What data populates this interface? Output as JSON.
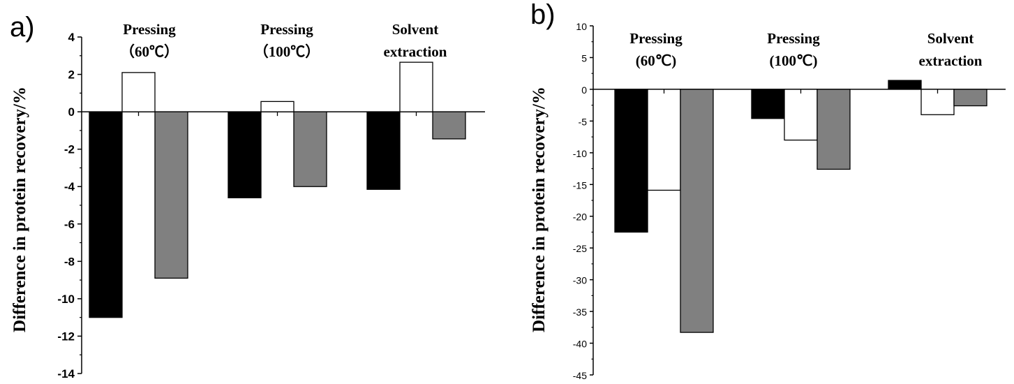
{
  "chart_data": [
    {
      "type": "bar",
      "panel_label": "a)",
      "ylabel": "Difference in protein recovery/%",
      "ylim": [
        -14,
        4
      ],
      "yticks": [
        "4",
        "2",
        "0",
        "-2",
        "-4",
        "-6",
        "-8",
        "-10",
        "-12",
        "-14"
      ],
      "categories": [
        {
          "lines": [
            "Pressing",
            "（60℃）"
          ]
        },
        {
          "lines": [
            "Pressing",
            "（100℃）"
          ]
        },
        {
          "lines": [
            "Solvent",
            "extraction"
          ]
        }
      ],
      "series": [
        {
          "color": "#000000",
          "values": [
            -11.0,
            -4.6,
            -4.15
          ]
        },
        {
          "color": "#ffffff",
          "values": [
            2.1,
            0.55,
            2.65
          ]
        },
        {
          "color": "#808080",
          "values": [
            -8.9,
            -4.0,
            -1.45
          ]
        }
      ]
    },
    {
      "type": "bar",
      "panel_label": "b)",
      "ylabel": "Difference in protein recovery/%",
      "ylim": [
        -45,
        10
      ],
      "yticks": [
        "10",
        "5",
        "0",
        "-5",
        "-10",
        "-15",
        "-20",
        "-25",
        "-30",
        "-35",
        "-40",
        "-45"
      ],
      "categories": [
        {
          "lines": [
            "Pressing",
            "(60℃)"
          ]
        },
        {
          "lines": [
            "Pressing",
            "(100℃)"
          ]
        },
        {
          "lines": [
            "Solvent",
            "extraction"
          ]
        }
      ],
      "series": [
        {
          "color": "#000000",
          "values": [
            -22.5,
            -4.6,
            1.4
          ]
        },
        {
          "color": "#ffffff",
          "values": [
            -15.9,
            -8.0,
            -4.0
          ]
        },
        {
          "color": "#808080",
          "values": [
            -38.3,
            -12.6,
            -2.6
          ]
        }
      ]
    }
  ]
}
